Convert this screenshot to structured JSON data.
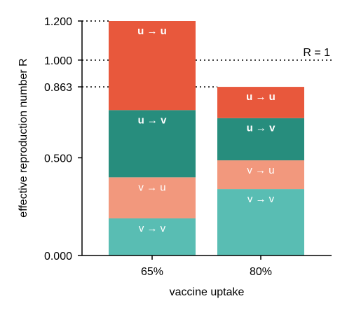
{
  "chart_data": {
    "type": "bar",
    "stacked": true,
    "xlabel": "vaccine uptake",
    "ylabel": "effective reproduction number R",
    "ylim": [
      0,
      1.2
    ],
    "yticks": [
      "0.000",
      "0.500",
      "0.863",
      "1.000",
      "1.200"
    ],
    "categories": [
      "65%",
      "80%"
    ],
    "series": [
      {
        "name": "v → v",
        "color": "#59bdb3",
        "bold": false,
        "values": [
          0.19,
          0.34
        ]
      },
      {
        "name": "v → u",
        "color": "#f2987d",
        "bold": false,
        "values": [
          0.21,
          0.147
        ]
      },
      {
        "name": "u → v",
        "color": "#278d7d",
        "bold": true,
        "values": [
          0.344,
          0.216
        ]
      },
      {
        "name": "u → u",
        "color": "#e8583c",
        "bold": true,
        "values": [
          0.456,
          0.16
        ]
      }
    ],
    "reference_lines": [
      {
        "value": 1.0,
        "label": "R = 1",
        "extent": "full"
      },
      {
        "value": 1.2,
        "label": "",
        "extent": "to-bar-0"
      },
      {
        "value": 0.863,
        "label": "",
        "extent": "to-bar-1"
      }
    ]
  }
}
